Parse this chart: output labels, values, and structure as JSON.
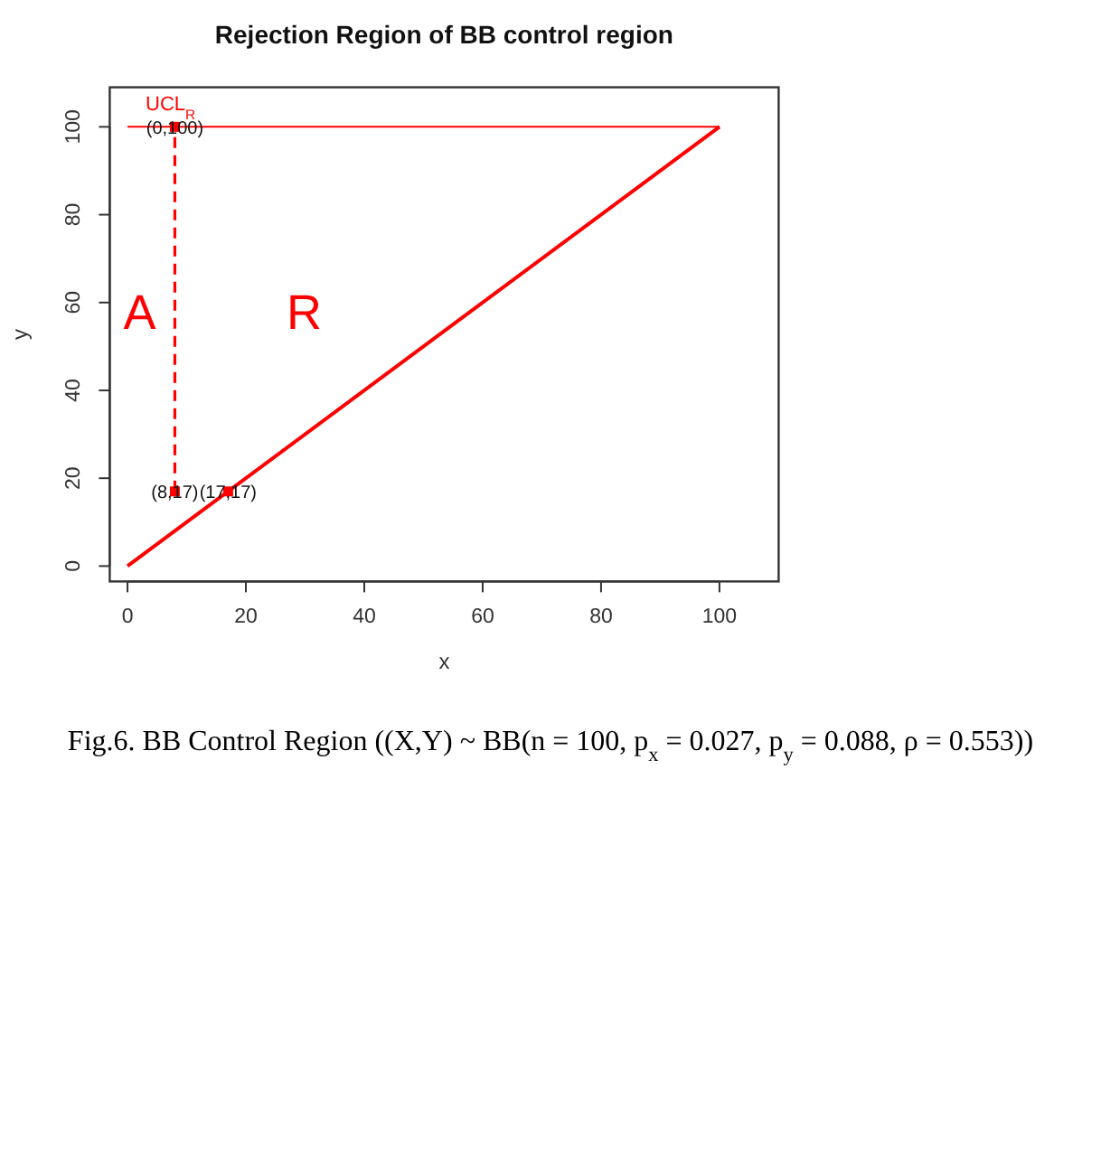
{
  "chart_data": {
    "type": "line",
    "title": "Rejection Region of BB control region",
    "xlabel": "x",
    "ylabel": "y",
    "xlim": [
      -3,
      110
    ],
    "ylim": [
      -3.5,
      109
    ],
    "xticks": [
      0,
      20,
      40,
      60,
      80,
      100
    ],
    "yticks": [
      0,
      20,
      40,
      60,
      80,
      100
    ],
    "series": [
      {
        "color": "#ff0000",
        "x": [
          0,
          100
        ],
        "values": [
          0,
          100
        ]
      },
      {
        "name": "UCL$_{R}$",
        "color": "#ff0000",
        "x": [
          0,
          100
        ],
        "values": [
          100,
          100
        ]
      },
      {
        "color": "#ff0000",
        "x": [
          8,
          8
        ],
        "values": [
          17,
          100
        ],
        "line_style": "dashed"
      },
      {
        "type": "scatter",
        "name": "(0,100)",
        "color": "#ff0000",
        "x": [
          8
        ],
        "values": [
          100
        ],
        "marker": "square"
      },
      {
        "type": "scatter",
        "name": "(8,17)",
        "color": "#ff0000",
        "x": [
          8
        ],
        "values": [
          17
        ],
        "marker": "square"
      },
      {
        "type": "scatter",
        "name": "(17,17)",
        "color": "#ff0000",
        "x": [
          17
        ],
        "values": [
          17
        ],
        "marker": "square"
      }
    ],
    "annotations": [
      "A",
      "R",
      "Fig.6. BB Control Region ((X,Y) ~ BB(n = 100, p$_{x}$ = 0.027, p$_{y}$ = 0.088, ρ = 0.553))"
    ]
  }
}
